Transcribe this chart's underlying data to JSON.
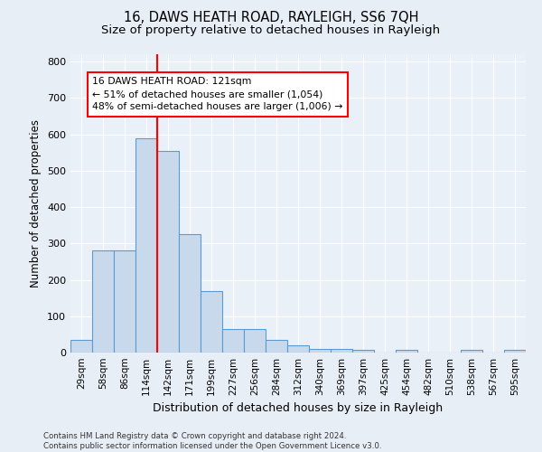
{
  "title1": "16, DAWS HEATH ROAD, RAYLEIGH, SS6 7QH",
  "title2": "Size of property relative to detached houses in Rayleigh",
  "xlabel": "Distribution of detached houses by size in Rayleigh",
  "ylabel": "Number of detached properties",
  "footnote": "Contains HM Land Registry data © Crown copyright and database right 2024.\nContains public sector information licensed under the Open Government Licence v3.0.",
  "bar_labels": [
    "29sqm",
    "58sqm",
    "86sqm",
    "114sqm",
    "142sqm",
    "171sqm",
    "199sqm",
    "227sqm",
    "256sqm",
    "284sqm",
    "312sqm",
    "340sqm",
    "369sqm",
    "397sqm",
    "425sqm",
    "454sqm",
    "482sqm",
    "510sqm",
    "538sqm",
    "567sqm",
    "595sqm"
  ],
  "bar_heights": [
    35,
    280,
    280,
    590,
    555,
    325,
    170,
    65,
    65,
    35,
    20,
    10,
    10,
    8,
    0,
    8,
    0,
    0,
    8,
    0,
    8
  ],
  "bar_color": "#c9d9ec",
  "bar_edge_color": "#5b9bd5",
  "vline_color": "red",
  "annotation_text": "16 DAWS HEATH ROAD: 121sqm\n← 51% of detached houses are smaller (1,054)\n48% of semi-detached houses are larger (1,006) →",
  "annotation_box_color": "red",
  "annotation_box_facecolor": "white",
  "ylim": [
    0,
    820
  ],
  "background_color": "#e8eef5",
  "plot_bg_color": "#eaf0f8",
  "grid_color": "white",
  "title_fontsize": 10.5,
  "subtitle_fontsize": 9.5,
  "annotation_fontsize": 7.8,
  "ylabel_fontsize": 8.5,
  "xlabel_fontsize": 9,
  "tick_fontsize": 7.5,
  "ytick_fontsize": 8
}
